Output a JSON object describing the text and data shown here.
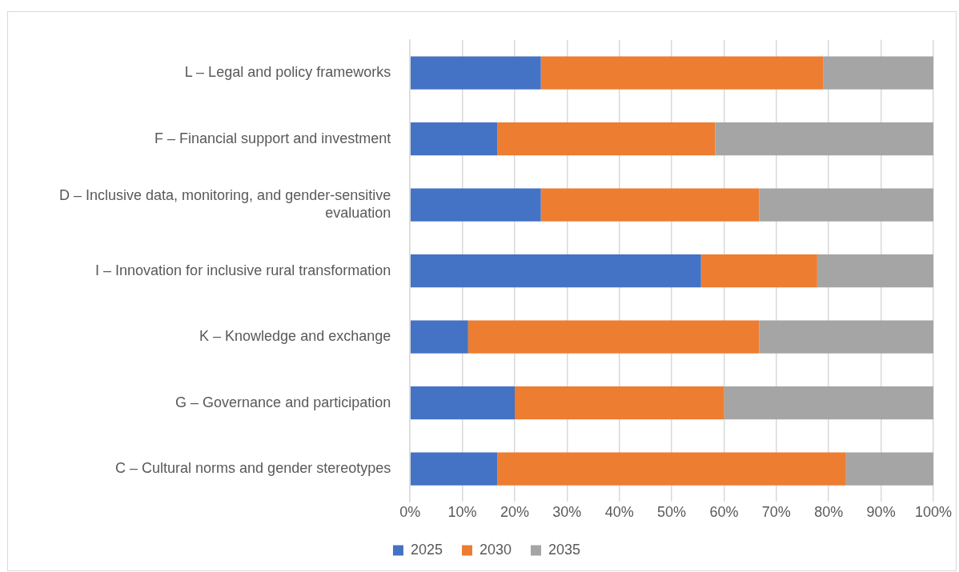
{
  "chart_data": {
    "type": "bar",
    "orientation": "horizontal",
    "stacked": true,
    "categories": [
      "L – Legal and policy frameworks",
      "F – Financial support and investment",
      "D – Inclusive data, monitoring, and gender-sensitive evaluation",
      "I – Innovation for inclusive rural transformation",
      "K – Knowledge and exchange",
      "G – Governance and participation",
      "C – Cultural norms and gender stereotypes"
    ],
    "series": [
      {
        "name": "2025",
        "color": "#4472c4",
        "values": [
          25,
          16.7,
          25,
          55.6,
          11.1,
          20,
          16.7
        ]
      },
      {
        "name": "2030",
        "color": "#ed7d31",
        "values": [
          54,
          41.6,
          41.7,
          22.2,
          55.6,
          40,
          66.6
        ]
      },
      {
        "name": "2035",
        "color": "#a5a5a5",
        "values": [
          21,
          41.7,
          33.3,
          22.2,
          33.3,
          40,
          16.7
        ]
      }
    ],
    "xlim": [
      0,
      100
    ],
    "xticks": [
      {
        "value": 0,
        "label": "0%"
      },
      {
        "value": 10,
        "label": "10%"
      },
      {
        "value": 20,
        "label": "20%"
      },
      {
        "value": 30,
        "label": "30%"
      },
      {
        "value": 40,
        "label": "40%"
      },
      {
        "value": 50,
        "label": "50%"
      },
      {
        "value": 60,
        "label": "60%"
      },
      {
        "value": 70,
        "label": "70%"
      },
      {
        "value": 80,
        "label": "80%"
      },
      {
        "value": 90,
        "label": "90%"
      },
      {
        "value": 100,
        "label": "100%"
      }
    ],
    "grid": "x",
    "legend": "bottom"
  }
}
